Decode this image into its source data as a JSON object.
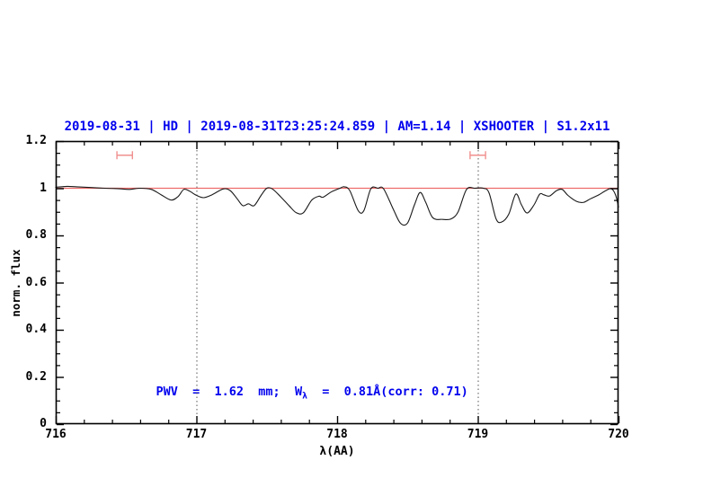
{
  "chart_data": {
    "type": "line",
    "title": "2019-08-31 | HD | 2019-08-31T23:25:24.859 | AM=1.14 | XSHOOTER | S1.2x11",
    "title_color": "#0000ee",
    "xlabel": "λ(AA)",
    "ylabel": "norm. flux",
    "xlim": [
      716,
      720
    ],
    "ylim": [
      0,
      1.2
    ],
    "grid": false,
    "legend": "none",
    "xticks": {
      "major": [
        716,
        717,
        718,
        719,
        720
      ],
      "labels": [
        "716",
        "717",
        "718",
        "719",
        "720"
      ],
      "minor_step": 0.2
    },
    "yticks": {
      "major": [
        0,
        0.2,
        0.4,
        0.6,
        0.8,
        1,
        1.2
      ],
      "labels": [
        "0",
        "0.2",
        "0.4",
        "0.6",
        "0.8",
        "1",
        "1.2"
      ],
      "minor_step": 0.05
    },
    "vlines": {
      "x": [
        717,
        719
      ],
      "style": "dotted",
      "color": "#555555"
    },
    "continuum_line": {
      "y": 1.0,
      "color": "#ee6b6b"
    },
    "range_markers": [
      {
        "x_center": 716.49,
        "x_half_width": 0.055,
        "y": 1.14,
        "color": "#f0918f"
      },
      {
        "x_center": 719.0,
        "x_half_width": 0.055,
        "y": 1.14,
        "color": "#f0918f"
      }
    ],
    "annotation": {
      "prefix": "PWV  =  1.62  mm;  W",
      "sub": "λ",
      "suffix": "  =  0.81Å(corr: 0.71)",
      "color": "#0000ee",
      "x": 716.5,
      "y": 0.22
    },
    "series": [
      {
        "name": "spectrum",
        "color": "#1a1a1a",
        "x": [
          716.0,
          716.08,
          716.15,
          716.25,
          716.35,
          716.45,
          716.52,
          716.6,
          716.68,
          716.75,
          716.82,
          716.87,
          716.91,
          716.95,
          717.0,
          717.05,
          717.11,
          717.19,
          717.24,
          717.29,
          717.33,
          717.37,
          717.41,
          717.46,
          717.5,
          717.54,
          717.6,
          717.66,
          717.71,
          717.76,
          717.82,
          717.87,
          717.9,
          717.96,
          718.02,
          718.05,
          718.09,
          718.15,
          718.19,
          718.24,
          718.29,
          718.33,
          718.4,
          718.45,
          718.5,
          718.55,
          718.59,
          718.63,
          718.68,
          718.75,
          718.81,
          718.86,
          718.92,
          718.98,
          719.04,
          719.08,
          719.13,
          719.17,
          719.22,
          719.27,
          719.31,
          719.35,
          719.4,
          719.44,
          719.47,
          719.51,
          719.56,
          719.6,
          719.64,
          719.7,
          719.75,
          719.8,
          719.86,
          719.91,
          719.95,
          719.98,
          720.0
        ],
        "y": [
          1.004,
          1.008,
          1.006,
          1.003,
          1.0,
          0.998,
          0.995,
          1.0,
          0.995,
          0.972,
          0.95,
          0.965,
          0.995,
          0.988,
          0.97,
          0.96,
          0.972,
          0.997,
          0.99,
          0.955,
          0.926,
          0.934,
          0.926,
          0.97,
          1.0,
          0.997,
          0.963,
          0.925,
          0.896,
          0.896,
          0.95,
          0.966,
          0.962,
          0.985,
          1.0,
          1.006,
          0.99,
          0.905,
          0.905,
          0.998,
          1.0,
          0.998,
          0.91,
          0.852,
          0.852,
          0.93,
          0.982,
          0.94,
          0.875,
          0.868,
          0.87,
          0.9,
          0.995,
          1.0,
          1.0,
          0.98,
          0.87,
          0.857,
          0.89,
          0.975,
          0.93,
          0.895,
          0.93,
          0.975,
          0.972,
          0.967,
          0.99,
          0.995,
          0.97,
          0.945,
          0.94,
          0.955,
          0.972,
          0.99,
          0.998,
          0.97,
          0.92
        ]
      }
    ]
  }
}
